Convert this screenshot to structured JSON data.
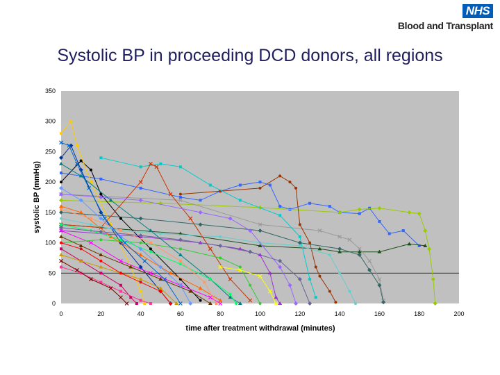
{
  "header": {
    "logo_text": "NHS",
    "org_name": "Blood and Transplant"
  },
  "slide": {
    "title": "Systolic BP in proceeding DCD donors, all regions"
  },
  "colors": {
    "plot_background": "#c0c0c0",
    "logo_blue": "#005eb8",
    "title_color": "#1f1f5f"
  },
  "chart_data": {
    "type": "line",
    "title": "",
    "xlabel": "time after treatment withdrawal (minutes)",
    "ylabel": "systolic BP (mmHg)",
    "xlim": [
      0,
      200
    ],
    "ylim": [
      0,
      350
    ],
    "x_ticks": [
      "0",
      "20",
      "40",
      "60",
      "80",
      "100",
      "120",
      "140",
      "160",
      "180",
      "200"
    ],
    "y_ticks": [
      "0",
      "50",
      "100",
      "150",
      "200",
      "250",
      "300",
      "350"
    ],
    "grid": false,
    "legend": "none",
    "reference_line": 50,
    "note": "approximate selection of the many overlapping donor series",
    "series": [
      {
        "color": "#3366ff",
        "points": [
          [
            0,
            215
          ],
          [
            20,
            205
          ],
          [
            40,
            190
          ],
          [
            60,
            175
          ],
          [
            70,
            170
          ],
          [
            80,
            185
          ],
          [
            90,
            195
          ],
          [
            100,
            200
          ],
          [
            105,
            195
          ],
          [
            110,
            160
          ],
          [
            115,
            155
          ],
          [
            125,
            165
          ],
          [
            135,
            160
          ],
          [
            140,
            150
          ],
          [
            150,
            148
          ],
          [
            155,
            157
          ],
          [
            160,
            135
          ],
          [
            165,
            115
          ],
          [
            172,
            120
          ],
          [
            180,
            95
          ]
        ]
      },
      {
        "color": "#99cc00",
        "points": [
          [
            0,
            170
          ],
          [
            50,
            165
          ],
          [
            100,
            158
          ],
          [
            140,
            150
          ],
          [
            150,
            155
          ],
          [
            160,
            157
          ],
          [
            175,
            150
          ],
          [
            180,
            148
          ],
          [
            183,
            120
          ],
          [
            185,
            90
          ],
          [
            187,
            40
          ],
          [
            188,
            0
          ]
        ]
      },
      {
        "color": "#1a4f1a",
        "points": [
          [
            0,
            130
          ],
          [
            60,
            115
          ],
          [
            100,
            95
          ],
          [
            130,
            90
          ],
          [
            140,
            85
          ],
          [
            150,
            85
          ],
          [
            160,
            85
          ],
          [
            175,
            98
          ],
          [
            183,
            95
          ]
        ]
      },
      {
        "color": "#999999",
        "points": [
          [
            0,
            180
          ],
          [
            60,
            170
          ],
          [
            100,
            130
          ],
          [
            130,
            120
          ],
          [
            140,
            110
          ],
          [
            145,
            105
          ],
          [
            150,
            90
          ],
          [
            155,
            70
          ],
          [
            160,
            40
          ],
          [
            162,
            5
          ]
        ]
      },
      {
        "color": "#993300",
        "points": [
          [
            60,
            180
          ],
          [
            80,
            185
          ],
          [
            100,
            190
          ],
          [
            110,
            210
          ],
          [
            115,
            200
          ],
          [
            118,
            190
          ],
          [
            120,
            130
          ],
          [
            125,
            100
          ],
          [
            128,
            60
          ],
          [
            130,
            45
          ],
          [
            135,
            20
          ],
          [
            138,
            2
          ]
        ]
      },
      {
        "color": "#00cccc",
        "points": [
          [
            20,
            240
          ],
          [
            40,
            225
          ],
          [
            50,
            230
          ],
          [
            60,
            225
          ],
          [
            75,
            195
          ],
          [
            90,
            170
          ],
          [
            110,
            145
          ],
          [
            120,
            110
          ],
          [
            125,
            40
          ],
          [
            128,
            10
          ]
        ]
      },
      {
        "color": "#336666",
        "points": [
          [
            0,
            150
          ],
          [
            40,
            140
          ],
          [
            70,
            130
          ],
          [
            100,
            120
          ],
          [
            120,
            100
          ],
          [
            140,
            90
          ],
          [
            150,
            80
          ],
          [
            155,
            55
          ],
          [
            160,
            30
          ],
          [
            162,
            2
          ]
        ]
      },
      {
        "color": "#9933cc",
        "points": [
          [
            0,
            120
          ],
          [
            40,
            110
          ],
          [
            70,
            100
          ],
          [
            90,
            90
          ],
          [
            100,
            80
          ],
          [
            105,
            50
          ],
          [
            108,
            10
          ],
          [
            110,
            0
          ]
        ]
      },
      {
        "color": "#cc3300",
        "points": [
          [
            0,
            130
          ],
          [
            20,
            125
          ],
          [
            40,
            200
          ],
          [
            45,
            230
          ],
          [
            48,
            225
          ],
          [
            55,
            180
          ],
          [
            65,
            140
          ],
          [
            75,
            90
          ],
          [
            85,
            40
          ],
          [
            95,
            5
          ]
        ]
      },
      {
        "color": "#000000",
        "points": [
          [
            0,
            200
          ],
          [
            10,
            235
          ],
          [
            15,
            220
          ],
          [
            20,
            180
          ],
          [
            30,
            140
          ],
          [
            45,
            90
          ],
          [
            60,
            40
          ],
          [
            70,
            5
          ]
        ]
      },
      {
        "color": "#ffcc00",
        "points": [
          [
            0,
            280
          ],
          [
            5,
            300
          ],
          [
            8,
            260
          ],
          [
            15,
            200
          ],
          [
            25,
            130
          ],
          [
            35,
            60
          ],
          [
            40,
            20
          ],
          [
            42,
            0
          ]
        ]
      },
      {
        "color": "#003399",
        "points": [
          [
            0,
            240
          ],
          [
            5,
            260
          ],
          [
            10,
            220
          ],
          [
            20,
            150
          ],
          [
            30,
            100
          ],
          [
            40,
            60
          ],
          [
            50,
            20
          ],
          [
            55,
            0
          ]
        ]
      },
      {
        "color": "#ff6600",
        "points": [
          [
            0,
            160
          ],
          [
            10,
            150
          ],
          [
            25,
            110
          ],
          [
            40,
            80
          ],
          [
            55,
            50
          ],
          [
            70,
            25
          ],
          [
            80,
            5
          ]
        ]
      },
      {
        "color": "#ff00ff",
        "points": [
          [
            0,
            120
          ],
          [
            15,
            100
          ],
          [
            30,
            70
          ],
          [
            45,
            50
          ],
          [
            60,
            30
          ],
          [
            75,
            10
          ],
          [
            80,
            0
          ]
        ]
      },
      {
        "color": "#33cc33",
        "points": [
          [
            0,
            100
          ],
          [
            20,
            105
          ],
          [
            40,
            100
          ],
          [
            60,
            90
          ],
          [
            80,
            75
          ],
          [
            90,
            60
          ],
          [
            95,
            30
          ],
          [
            100,
            0
          ]
        ]
      },
      {
        "color": "#cc0066",
        "points": [
          [
            0,
            90
          ],
          [
            10,
            70
          ],
          [
            20,
            50
          ],
          [
            30,
            30
          ],
          [
            35,
            10
          ],
          [
            38,
            0
          ]
        ]
      },
      {
        "color": "#6699ff",
        "points": [
          [
            0,
            190
          ],
          [
            10,
            170
          ],
          [
            20,
            140
          ],
          [
            30,
            110
          ],
          [
            40,
            90
          ],
          [
            50,
            60
          ],
          [
            60,
            30
          ],
          [
            65,
            0
          ]
        ]
      },
      {
        "color": "#663300",
        "points": [
          [
            0,
            110
          ],
          [
            10,
            95
          ],
          [
            20,
            80
          ],
          [
            35,
            60
          ],
          [
            50,
            40
          ],
          [
            65,
            20
          ],
          [
            75,
            0
          ]
        ]
      },
      {
        "color": "#ffff00",
        "points": [
          [
            80,
            60
          ],
          [
            90,
            55
          ],
          [
            100,
            45
          ],
          [
            105,
            20
          ],
          [
            108,
            0
          ]
        ]
      },
      {
        "color": "#66cccc",
        "points": [
          [
            0,
            140
          ],
          [
            15,
            130
          ],
          [
            30,
            120
          ],
          [
            50,
            115
          ],
          [
            80,
            110
          ],
          [
            100,
            100
          ],
          [
            120,
            95
          ],
          [
            135,
            80
          ],
          [
            140,
            50
          ],
          [
            145,
            20
          ],
          [
            148,
            0
          ]
        ]
      },
      {
        "color": "#ff3399",
        "points": [
          [
            0,
            60
          ],
          [
            10,
            50
          ],
          [
            20,
            35
          ],
          [
            30,
            20
          ],
          [
            40,
            5
          ],
          [
            45,
            0
          ]
        ]
      },
      {
        "color": "#9966ff",
        "points": [
          [
            0,
            180
          ],
          [
            20,
            175
          ],
          [
            40,
            170
          ],
          [
            70,
            150
          ],
          [
            85,
            140
          ],
          [
            95,
            120
          ],
          [
            110,
            60
          ],
          [
            115,
            30
          ],
          [
            118,
            0
          ]
        ]
      },
      {
        "color": "#008080",
        "points": [
          [
            0,
            230
          ],
          [
            10,
            210
          ],
          [
            25,
            170
          ],
          [
            45,
            120
          ],
          [
            60,
            80
          ],
          [
            75,
            40
          ],
          [
            85,
            10
          ],
          [
            90,
            0
          ]
        ]
      },
      {
        "color": "#800000",
        "points": [
          [
            0,
            70
          ],
          [
            8,
            55
          ],
          [
            15,
            40
          ],
          [
            25,
            25
          ],
          [
            30,
            10
          ],
          [
            33,
            0
          ]
        ]
      },
      {
        "color": "#00ff66",
        "points": [
          [
            0,
            130
          ],
          [
            15,
            120
          ],
          [
            30,
            105
          ],
          [
            45,
            85
          ],
          [
            60,
            65
          ],
          [
            75,
            40
          ],
          [
            85,
            15
          ],
          [
            88,
            0
          ]
        ]
      },
      {
        "color": "#ff9966",
        "points": [
          [
            0,
            155
          ],
          [
            15,
            140
          ],
          [
            30,
            120
          ],
          [
            45,
            100
          ],
          [
            60,
            70
          ],
          [
            72,
            35
          ],
          [
            78,
            0
          ]
        ]
      },
      {
        "color": "#666699",
        "points": [
          [
            0,
            125
          ],
          [
            20,
            118
          ],
          [
            40,
            112
          ],
          [
            60,
            105
          ],
          [
            80,
            95
          ],
          [
            95,
            85
          ],
          [
            110,
            70
          ],
          [
            120,
            40
          ],
          [
            125,
            0
          ]
        ]
      },
      {
        "color": "#cc9900",
        "points": [
          [
            0,
            80
          ],
          [
            10,
            70
          ],
          [
            20,
            60
          ],
          [
            30,
            50
          ],
          [
            40,
            40
          ],
          [
            50,
            25
          ],
          [
            58,
            0
          ]
        ]
      },
      {
        "color": "#0066cc",
        "points": [
          [
            0,
            265
          ],
          [
            4,
            260
          ],
          [
            8,
            230
          ],
          [
            14,
            190
          ],
          [
            22,
            140
          ],
          [
            32,
            100
          ],
          [
            42,
            70
          ],
          [
            52,
            40
          ],
          [
            60,
            0
          ]
        ]
      },
      {
        "color": "#ff0000",
        "points": [
          [
            0,
            100
          ],
          [
            10,
            90
          ],
          [
            20,
            70
          ],
          [
            30,
            50
          ],
          [
            40,
            35
          ],
          [
            50,
            20
          ],
          [
            55,
            0
          ]
        ]
      }
    ]
  }
}
